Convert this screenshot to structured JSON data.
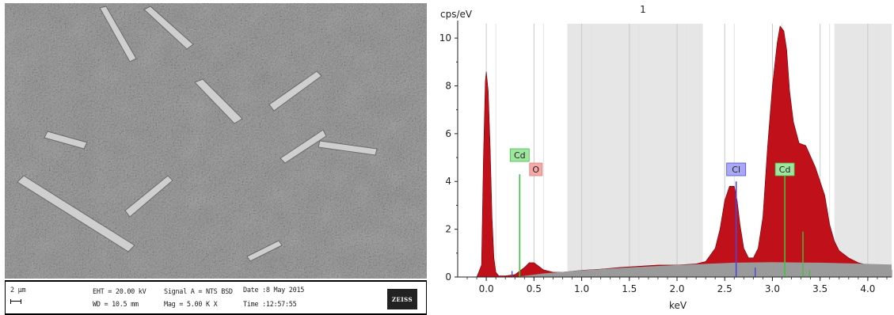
{
  "sem": {
    "scale_label": "2 µm",
    "eht": "EHT = 20.00 kV",
    "wd": "WD = 10.5 mm",
    "signal": "Signal A = NTS BSD",
    "mag": "Mag =  5.00 K X",
    "date": "Date :8 May 2015",
    "time": "Time :12:57:55",
    "logo_text": "ZEISS"
  },
  "chart_data": {
    "type": "area",
    "ylabel": "cps/eV",
    "xlabel": "keV",
    "xlim": [
      -0.3,
      4.25
    ],
    "ylim": [
      0,
      10.6
    ],
    "x_ticks": [
      "0.0",
      "0.5",
      "1.0",
      "1.5",
      "2.0",
      "2.5",
      "3.0",
      "3.5",
      "4.0"
    ],
    "y_ticks": [
      "0",
      "2",
      "4",
      "6",
      "8",
      "10"
    ],
    "grid": true,
    "region": {
      "label": "1",
      "ranges": [
        [
          0.85,
          2.27
        ],
        [
          3.65,
          4.25
        ]
      ]
    },
    "series": [
      {
        "color": "#c0101a",
        "x": [
          -0.3,
          -0.1,
          -0.05,
          -0.03,
          -0.01,
          0.0,
          0.02,
          0.04,
          0.06,
          0.08,
          0.1,
          0.13,
          0.2,
          0.3,
          0.4,
          0.45,
          0.5,
          0.55,
          0.6,
          0.7,
          0.8,
          1.0,
          1.2,
          1.4,
          1.6,
          1.8,
          2.0,
          2.2,
          2.3,
          2.4,
          2.45,
          2.5,
          2.55,
          2.6,
          2.63,
          2.66,
          2.7,
          2.75,
          2.8,
          2.85,
          2.9,
          2.95,
          3.0,
          3.05,
          3.08,
          3.12,
          3.15,
          3.18,
          3.22,
          3.28,
          3.35,
          3.45,
          3.55,
          3.6,
          3.65,
          3.7,
          3.8,
          3.9,
          4.0,
          4.1,
          4.25
        ],
        "y": [
          0,
          0,
          0.5,
          5.0,
          8.2,
          8.6,
          7.8,
          5.5,
          2.5,
          0.8,
          0.2,
          0.05,
          0.05,
          0.1,
          0.4,
          0.6,
          0.6,
          0.45,
          0.3,
          0.2,
          0.2,
          0.28,
          0.33,
          0.4,
          0.45,
          0.5,
          0.5,
          0.55,
          0.65,
          1.2,
          2.0,
          3.2,
          3.8,
          3.8,
          3.2,
          2.2,
          1.2,
          0.8,
          0.8,
          1.2,
          2.5,
          5.5,
          8.0,
          9.8,
          10.5,
          10.3,
          9.5,
          7.8,
          6.5,
          5.6,
          5.5,
          4.6,
          3.4,
          2.2,
          1.5,
          1.1,
          0.8,
          0.6,
          0.5,
          0.4,
          0.3
        ]
      },
      {
        "color": "#9a9a9a",
        "x": [
          0.3,
          0.6,
          1.0,
          1.5,
          2.0,
          2.3,
          2.6,
          3.0,
          3.5,
          4.0,
          4.25
        ],
        "y": [
          0.0,
          0.15,
          0.28,
          0.4,
          0.5,
          0.55,
          0.6,
          0.62,
          0.6,
          0.55,
          0.52
        ]
      }
    ],
    "element_markers": [
      {
        "label": "Cd",
        "x": 0.35,
        "height": 4.3,
        "line_color": "#3ec43e",
        "box_color": "#9fe59f"
      },
      {
        "label": "O",
        "x": 0.52,
        "height": 0.0,
        "line_color": "#e08080",
        "box_color": "#f4a8a8"
      },
      {
        "label": "Cl",
        "x": 2.62,
        "height": 4.0,
        "line_color": "#4848e0",
        "box_color": "#a8a8f4"
      },
      {
        "label": "Cd",
        "x": 3.13,
        "height": 4.3,
        "line_color": "#3ec43e",
        "box_color": "#9fe59f"
      }
    ],
    "minor_lines": [
      {
        "x": 0.27,
        "height": 0.25,
        "color": "#4848e0"
      },
      {
        "x": 2.82,
        "height": 0.4,
        "color": "#4848e0"
      },
      {
        "x": 3.32,
        "height": 1.9,
        "color": "#3ec43e"
      },
      {
        "x": 3.39,
        "height": 0.3,
        "color": "#3ec43e"
      }
    ]
  }
}
